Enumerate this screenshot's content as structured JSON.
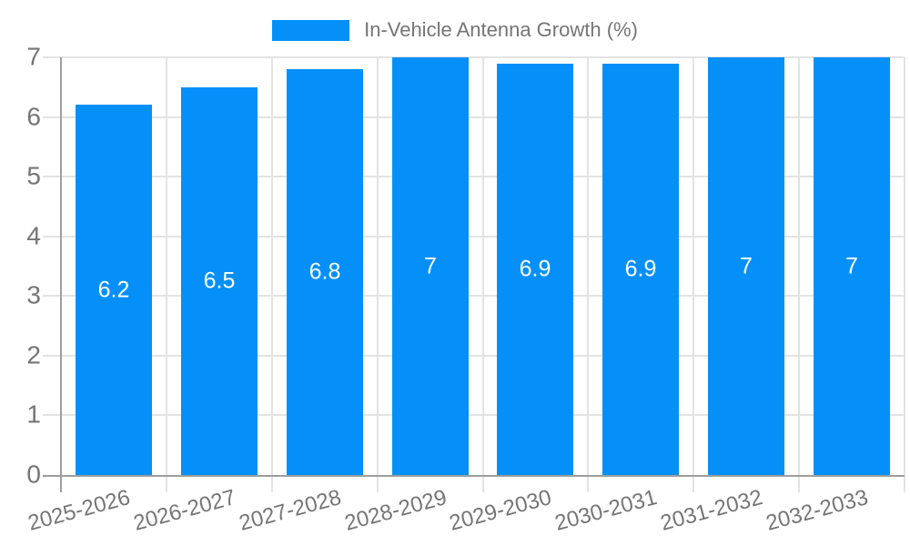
{
  "legend": {
    "label": "In-Vehicle Antenna Growth (%)"
  },
  "colors": {
    "bar": "#0590F9",
    "axis": "#9E9E9E",
    "grid": "#E3E3E3",
    "tick_text": "#757575",
    "value_text": "#FFFFFF"
  },
  "chart_data": {
    "type": "bar",
    "title": "",
    "legend": "In-Vehicle Antenna Growth (%)",
    "legend_position": "top",
    "categories": [
      "2025-2026",
      "2026-2027",
      "2027-2028",
      "2028-2029",
      "2029-2030",
      "2030-2031",
      "2031-2032",
      "2032-2033"
    ],
    "values": [
      6.2,
      6.5,
      6.8,
      7,
      6.9,
      6.9,
      7,
      7
    ],
    "value_labels": [
      "6.2",
      "6.5",
      "6.8",
      "7",
      "6.9",
      "6.9",
      "7",
      "7"
    ],
    "xlabel": "",
    "ylabel": "",
    "ylim": [
      0,
      7
    ],
    "yticks": [
      0,
      1,
      2,
      3,
      4,
      5,
      6,
      7
    ],
    "grid": true
  }
}
